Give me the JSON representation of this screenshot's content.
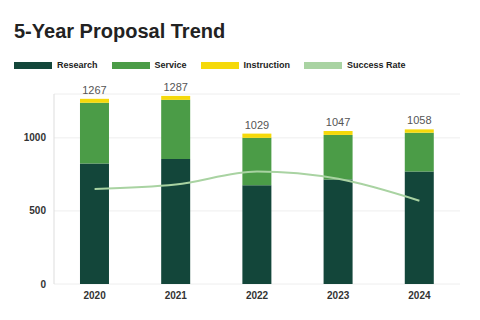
{
  "chart_data": {
    "type": "bar",
    "title": "5-Year Proposal Trend",
    "categories": [
      "2020",
      "2021",
      "2022",
      "2023",
      "2024"
    ],
    "stacked": true,
    "series": [
      {
        "name": "Research",
        "type": "bar",
        "color": "#13463a",
        "values": [
          825,
          855,
          675,
          715,
          770
        ]
      },
      {
        "name": "Service",
        "type": "bar",
        "color": "#4b9c47",
        "values": [
          415,
          405,
          325,
          305,
          265
        ]
      },
      {
        "name": "Instruction",
        "type": "bar",
        "color": "#f5d90a",
        "values": [
          27,
          27,
          29,
          27,
          23
        ]
      },
      {
        "name": "Success Rate",
        "type": "line",
        "color": "#a9d3a2",
        "values": [
          650,
          680,
          770,
          720,
          570
        ]
      }
    ],
    "totals": [
      1267,
      1287,
      1029,
      1047,
      1058
    ],
    "ylim": [
      0,
      1300
    ],
    "yticks": [
      0,
      500,
      1000
    ],
    "grid": true,
    "legend": "top-left"
  }
}
